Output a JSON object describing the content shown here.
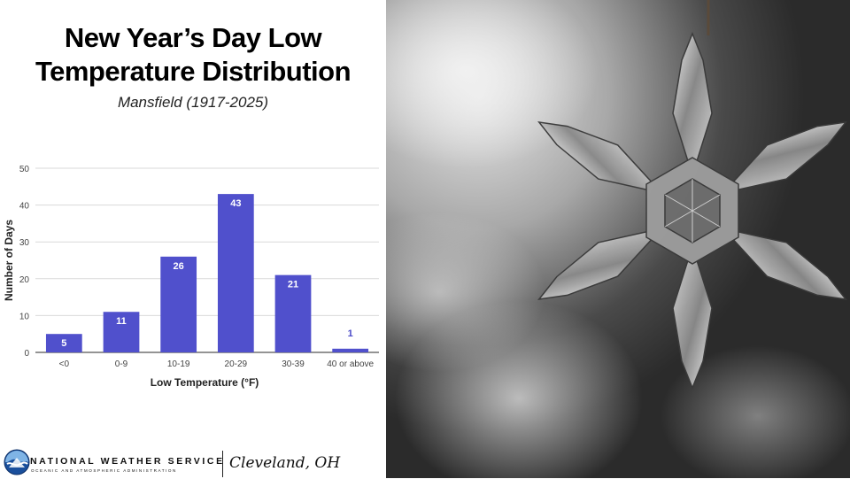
{
  "header": {
    "title_line1": "New Year’s Day Low",
    "title_line2": "Temperature Distribution",
    "subtitle": "Mansfield (1917-2025)"
  },
  "chart_data": {
    "type": "bar",
    "categories": [
      "<0",
      "0-9",
      "10-19",
      "20-29",
      "30-39",
      "40 or above"
    ],
    "values": [
      5,
      11,
      26,
      43,
      21,
      1
    ],
    "xlabel": "Low Temperature (°F)",
    "ylabel": "Number of Days",
    "ylim": [
      0,
      50
    ],
    "yticks": [
      0,
      10,
      20,
      30,
      40,
      50
    ],
    "grid": true,
    "bar_color": "#5050cc",
    "label_color": "#ffffff",
    "outside_label_color": "#4a4ac8"
  },
  "footer": {
    "agency": "NATIONAL WEATHER SERVICE",
    "agency_sub": "OCEANIC AND ATMOSPHERIC ADMINISTRATION",
    "office": "Cleveland, OH"
  },
  "photo": {
    "icon": "snowflake-ornament-icon"
  }
}
